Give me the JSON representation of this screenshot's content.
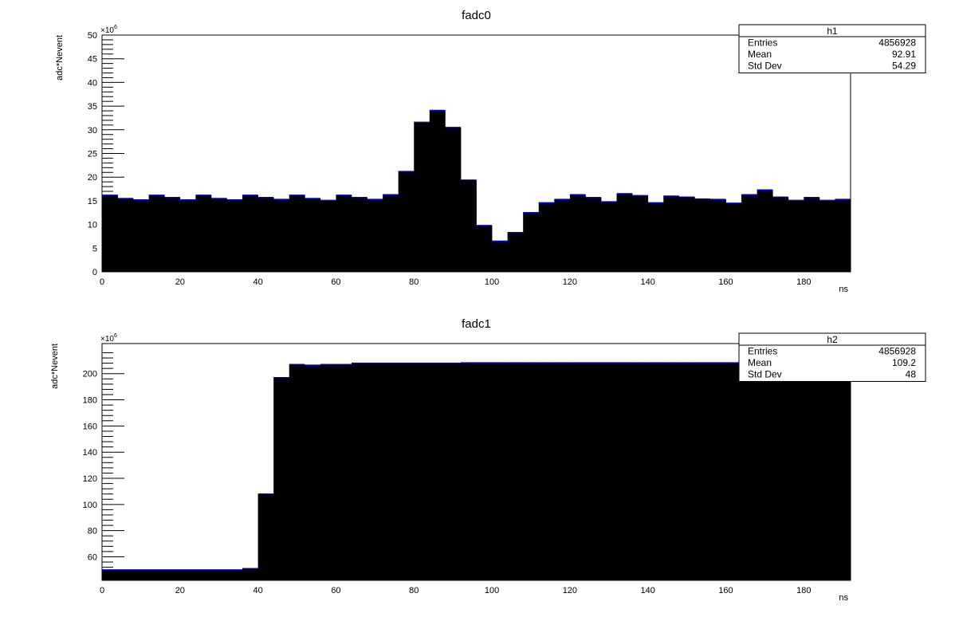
{
  "chart_data": [
    {
      "type": "bar",
      "title": "fadc0",
      "xlabel": "ns",
      "ylabel": "adc*Nevent",
      "y_multiplier": "×10",
      "y_exponent": "6",
      "xlim": [
        0,
        192
      ],
      "ylim": [
        0,
        50
      ],
      "bin_width": 4,
      "x_ticks": [
        0,
        20,
        40,
        60,
        80,
        100,
        120,
        140,
        160,
        180
      ],
      "y_ticks": [
        0,
        5,
        10,
        15,
        20,
        25,
        30,
        35,
        40,
        45,
        50
      ],
      "bar_color": "#000000",
      "edge_color": "#0000cc",
      "values": [
        16.2,
        15.5,
        15.2,
        16.2,
        15.7,
        15.2,
        16.2,
        15.5,
        15.2,
        16.2,
        15.7,
        15.3,
        16.2,
        15.5,
        15.1,
        16.2,
        15.7,
        15.3,
        16.3,
        21.2,
        31.6,
        34.1,
        30.5,
        19.4,
        9.8,
        6.5,
        8.3,
        12.5,
        14.6,
        15.3,
        16.3,
        15.7,
        14.8,
        16.5,
        16.1,
        14.6,
        16.0,
        15.8,
        15.4,
        15.3,
        14.5,
        16.3,
        17.3,
        15.8,
        15.1,
        15.7,
        15.1,
        15.3
      ],
      "stats": {
        "name": "h1",
        "rows": [
          {
            "label": "Entries",
            "value": "4856928"
          },
          {
            "label": "Mean",
            "value": "92.91"
          },
          {
            "label": "Std Dev",
            "value": "54.29"
          }
        ]
      }
    },
    {
      "type": "bar",
      "title": "fadc1",
      "xlabel": "ns",
      "ylabel": "adc*Nevent",
      "y_multiplier": "×10",
      "y_exponent": "6",
      "xlim": [
        0,
        192
      ],
      "ylim": [
        42,
        223
      ],
      "bin_width": 4,
      "x_ticks": [
        0,
        20,
        40,
        60,
        80,
        100,
        120,
        140,
        160,
        180
      ],
      "y_ticks": [
        60,
        80,
        100,
        120,
        140,
        160,
        180,
        200
      ],
      "bar_color": "#000000",
      "edge_color": "#0000cc",
      "values": [
        50,
        50,
        50,
        50,
        50,
        50,
        50,
        50,
        50,
        51,
        108,
        197,
        207,
        206.5,
        207,
        207,
        208,
        208,
        208,
        208,
        208,
        208,
        208,
        208.3,
        208.3,
        208.3,
        208.3,
        208.3,
        208.3,
        208.3,
        208.3,
        208.3,
        208.3,
        208.3,
        208.3,
        208.3,
        208.3,
        208.3,
        208.3,
        208.3,
        208.3,
        208.3,
        208.3,
        208.3,
        208.3,
        208.3,
        208.3,
        208.3
      ],
      "stats": {
        "name": "h2",
        "rows": [
          {
            "label": "Entries",
            "value": "4856928"
          },
          {
            "label": "Mean",
            "value": "109.2"
          },
          {
            "label": "Std Dev",
            "value": "48"
          }
        ]
      }
    }
  ]
}
